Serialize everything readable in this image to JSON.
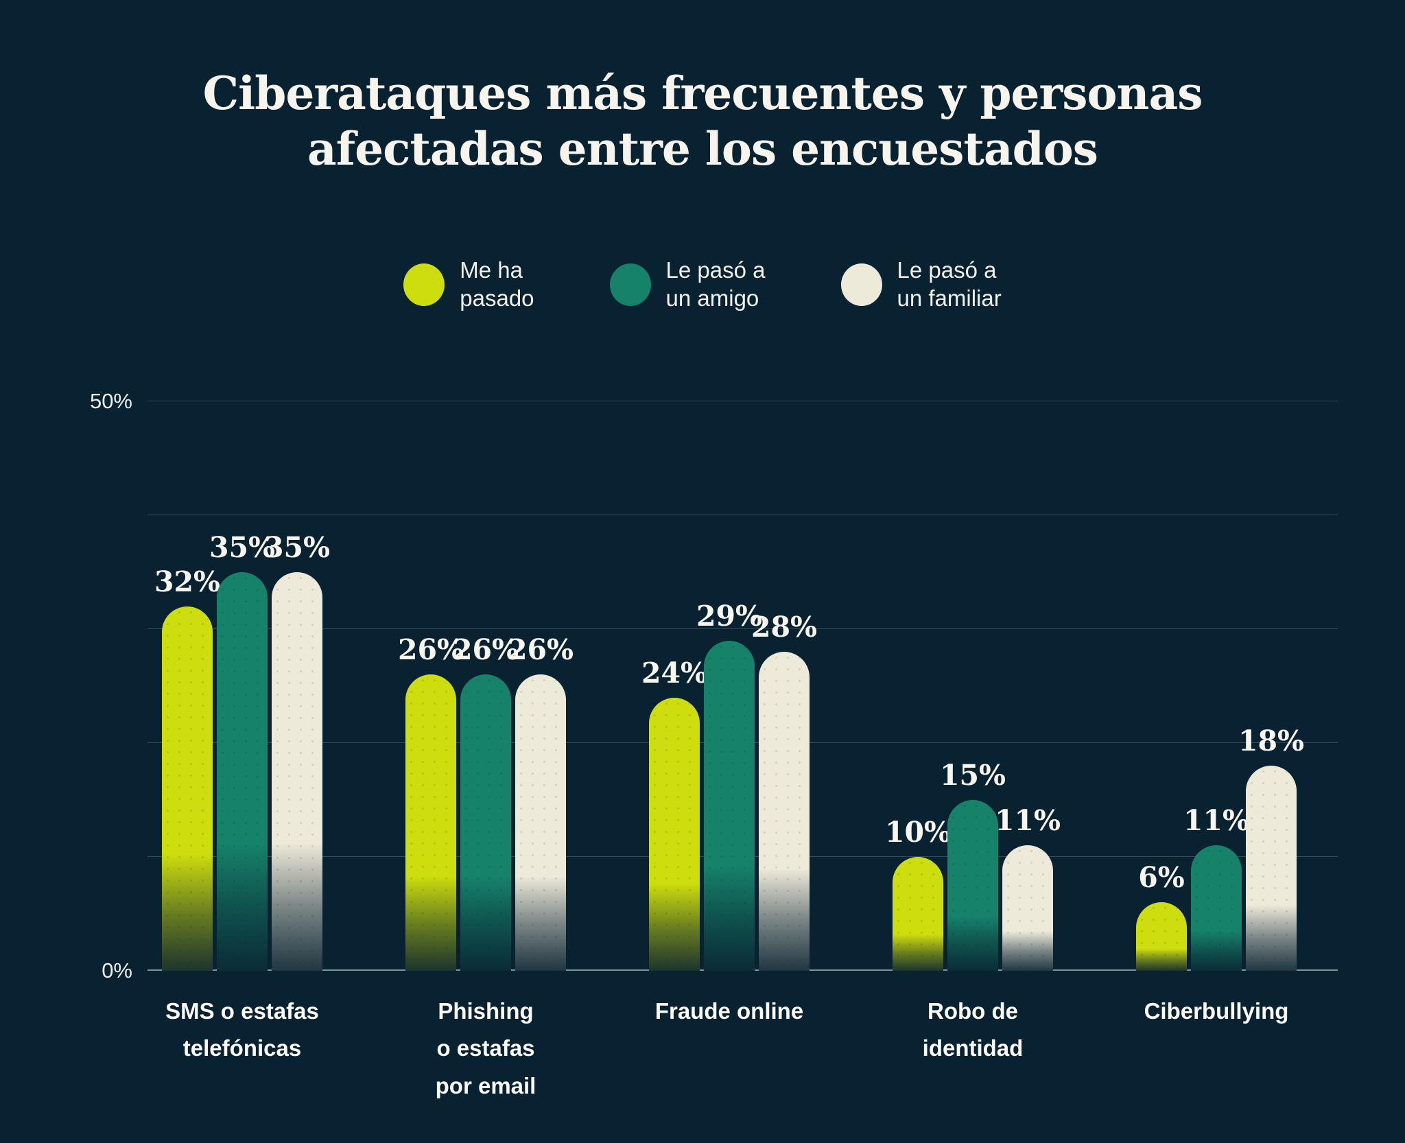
{
  "title": "Ciberataques más frecuentes y personas\nafectadas entre los encuestados",
  "legend": {
    "items": [
      {
        "label": "Me ha\npasado",
        "color": "#CDDD0E"
      },
      {
        "label": "Le pasó a\nun amigo",
        "color": "#16826A"
      },
      {
        "label": "Le pasó a\nun familiar",
        "color": "#EEEADA"
      }
    ]
  },
  "colors": {
    "background": "#092231",
    "grid": "rgba(160,185,198,0.28)",
    "baseline": "rgba(210,222,230,0.6)",
    "title_text": "#F6F4ED",
    "value_label_text": "#F8F6EE",
    "series_yellow": "#CDDD0E",
    "series_teal": "#16826A",
    "series_cream": "#EEEADA"
  },
  "chart_data": {
    "type": "bar",
    "title": "Ciberataques más frecuentes y personas afectadas entre los encuestados",
    "categories": [
      "SMS o estafas\ntelefónicas",
      "Phishing\no estafas\npor email",
      "Fraude online",
      "Robo de\nidentidad",
      "Ciberbullying"
    ],
    "series": [
      {
        "name": "Me ha pasado",
        "color": "#CDDD0E",
        "values": [
          32,
          26,
          24,
          10,
          6
        ],
        "display": [
          "32%",
          "26%",
          "24%",
          "10%",
          "6%"
        ]
      },
      {
        "name": "Le pasó a un amigo",
        "color": "#16826A",
        "values": [
          35,
          26,
          29,
          15,
          11
        ],
        "display": [
          "35%",
          "26%",
          "29%",
          "15%",
          "11%"
        ]
      },
      {
        "name": "Le pasó a un familiar",
        "color": "#EEEADA",
        "values": [
          35,
          26,
          28,
          11,
          18
        ],
        "display": [
          "35%",
          "26%",
          "28%",
          "11%",
          "18%"
        ]
      }
    ],
    "xlabel": "",
    "ylabel": "",
    "ylim": [
      0,
      50
    ],
    "yticks": [
      0,
      10,
      20,
      30,
      40,
      50
    ],
    "ytick_labels": {
      "0": "0%",
      "50": "50%"
    },
    "grid": true,
    "legend_position": "top"
  }
}
